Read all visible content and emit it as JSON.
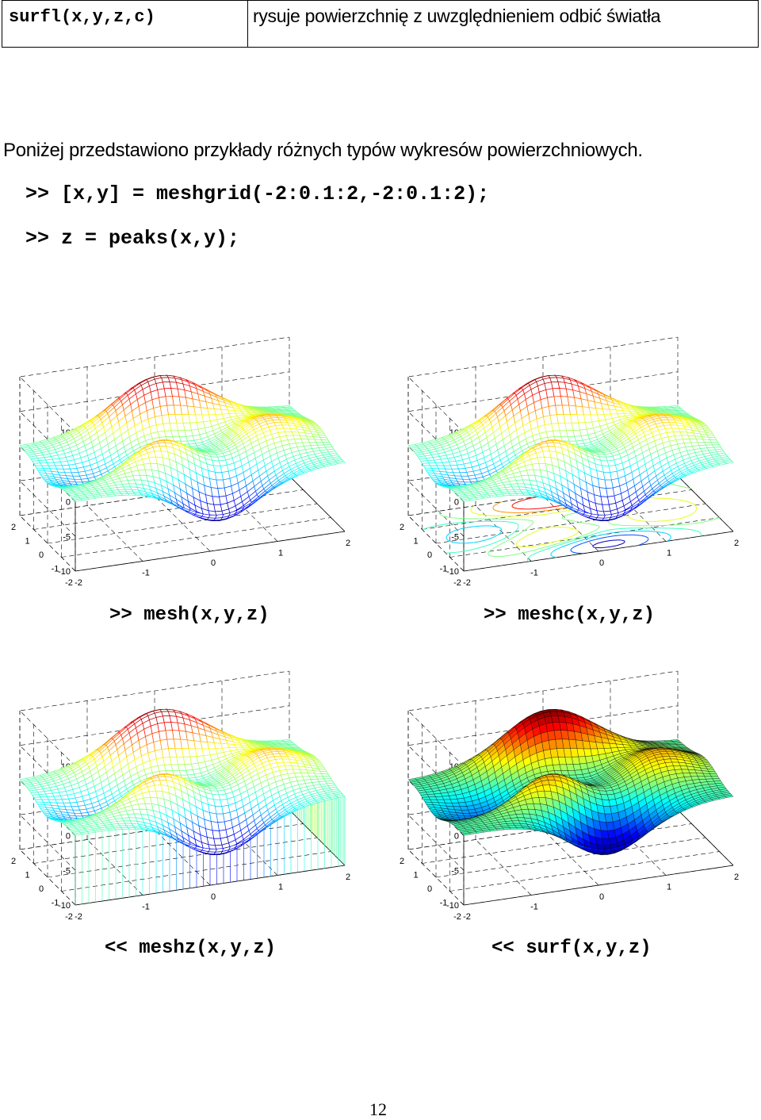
{
  "table": {
    "cmd": "surfl(x,y,z,c)",
    "desc": "rysuje powierzchnię z uwzględnieniem odbić światła"
  },
  "intro": "Poniżej przedstawiono przykłady różnych typów wykresów powierzchniowych.",
  "code": [
    ">> [x,y] = meshgrid(-2:0.1:2,-2:0.1:2);",
    ">> z = peaks(x,y);"
  ],
  "plots": [
    {
      "caption": ">> mesh(x,y,z)",
      "style": "mesh"
    },
    {
      "caption": ">> meshc(x,y,z)",
      "style": "meshc"
    },
    {
      "caption": "<< meshz(x,y,z)",
      "style": "meshz"
    },
    {
      "caption": "<< surf(x,y,z)",
      "style": "surf"
    }
  ],
  "axes": {
    "z_ticks": [
      "10",
      "5",
      "0",
      "-5",
      "-10"
    ],
    "y_ticks": [
      "2",
      "1",
      "0",
      "-1",
      "-2"
    ],
    "x_ticks": [
      "-2",
      "-1",
      "0",
      "1",
      "2"
    ]
  },
  "page_number": "12"
}
